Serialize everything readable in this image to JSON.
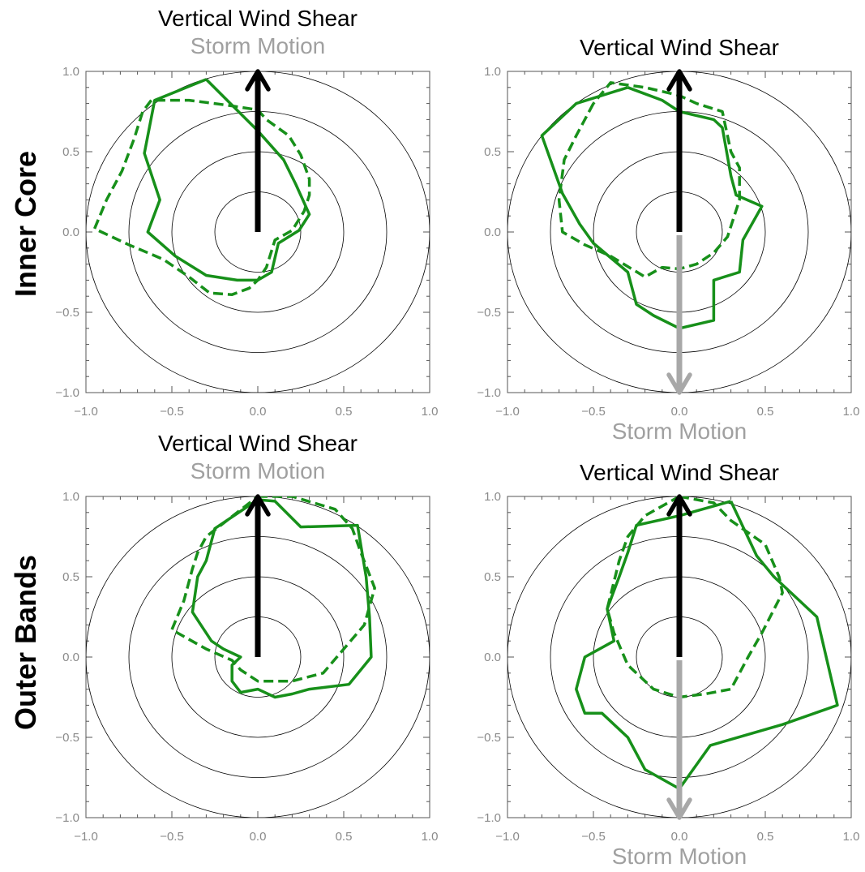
{
  "colors": {
    "shear_arrow": "#000000",
    "motion_arrow": "#a8a8a8",
    "motion_text": "#a0a0a0",
    "series": "#17901a",
    "rings": "#000000",
    "axis_labels": "#8a8a8a"
  },
  "row_labels": [
    "Inner Core",
    "Outer Bands"
  ],
  "chart_data": [
    {
      "type": "line",
      "panel": "top-left",
      "top_titles": [
        "Vertical Wind Shear",
        "Storm Motion"
      ],
      "bottom_title": "",
      "xlim": [
        -1.0,
        1.0
      ],
      "ylim": [
        -1.0,
        1.0
      ],
      "xticks": [
        "−1.0",
        "−0.5",
        "0.0",
        "0.5",
        "1.0"
      ],
      "yticks": [
        "1.0",
        "0.5",
        "0.0",
        "−0.5",
        "−1.0"
      ],
      "rings": [
        0.25,
        0.5,
        0.75,
        1.0
      ],
      "arrows": [
        {
          "name": "Vertical Wind Shear",
          "color": "black",
          "x1": 0,
          "y1": 0,
          "x2": 0,
          "y2": 1.0
        },
        {
          "name": "Storm Motion",
          "color": "gray",
          "x1": 0,
          "y1": 0,
          "x2": 0,
          "y2": 1.0
        }
      ],
      "series": [
        {
          "style": "solid",
          "points": [
            [
              -0.3,
              0.95
            ],
            [
              -0.6,
              0.82
            ],
            [
              -0.66,
              0.49
            ],
            [
              -0.57,
              0.2
            ],
            [
              -0.64,
              0.0
            ],
            [
              -0.48,
              -0.15
            ],
            [
              -0.3,
              -0.27
            ],
            [
              -0.12,
              -0.3
            ],
            [
              0.0,
              -0.3
            ],
            [
              0.08,
              -0.25
            ],
            [
              0.12,
              -0.07
            ],
            [
              0.24,
              0.01
            ],
            [
              0.3,
              0.11
            ],
            [
              0.22,
              0.3
            ],
            [
              0.15,
              0.45
            ],
            [
              0.0,
              0.63
            ],
            [
              -0.3,
              0.95
            ]
          ]
        },
        {
          "style": "dashed",
          "points": [
            [
              -0.62,
              0.82
            ],
            [
              -0.67,
              0.75
            ],
            [
              -0.72,
              0.58
            ],
            [
              -0.79,
              0.38
            ],
            [
              -0.88,
              0.2
            ],
            [
              -0.95,
              0.02
            ],
            [
              -0.75,
              -0.08
            ],
            [
              -0.55,
              -0.17
            ],
            [
              -0.4,
              -0.28
            ],
            [
              -0.28,
              -0.38
            ],
            [
              -0.15,
              -0.39
            ],
            [
              -0.05,
              -0.35
            ],
            [
              0.0,
              -0.3
            ],
            [
              0.05,
              -0.22
            ],
            [
              0.1,
              -0.05
            ],
            [
              0.2,
              0.01
            ],
            [
              0.27,
              0.13
            ],
            [
              0.3,
              0.23
            ],
            [
              0.3,
              0.33
            ],
            [
              0.25,
              0.48
            ],
            [
              0.18,
              0.6
            ],
            [
              0.05,
              0.7
            ],
            [
              0.0,
              0.76
            ],
            [
              -0.18,
              0.79
            ],
            [
              -0.4,
              0.82
            ],
            [
              -0.62,
              0.82
            ]
          ]
        }
      ]
    },
    {
      "type": "line",
      "panel": "top-right",
      "top_titles": [
        "Vertical Wind Shear"
      ],
      "bottom_title": "Storm Motion",
      "xlim": [
        -1.0,
        1.0
      ],
      "ylim": [
        -1.0,
        1.0
      ],
      "xticks": [
        "−1.0",
        "−0.5",
        "0.0",
        "0.5",
        "1.0"
      ],
      "yticks": [
        "1.0",
        "0.5",
        "0.0",
        "−0.5",
        "−1.0"
      ],
      "rings": [
        0.25,
        0.5,
        0.75,
        1.0
      ],
      "arrows": [
        {
          "name": "Vertical Wind Shear",
          "color": "black",
          "x1": 0,
          "y1": 0,
          "x2": 0,
          "y2": 1.0
        },
        {
          "name": "Storm Motion",
          "color": "gray",
          "x1": 0,
          "y1": 0,
          "x2": 0,
          "y2": -1.0
        }
      ],
      "series": [
        {
          "style": "solid",
          "points": [
            [
              -0.3,
              0.9
            ],
            [
              -0.6,
              0.8
            ],
            [
              -0.8,
              0.6
            ],
            [
              -0.68,
              0.24
            ],
            [
              -0.58,
              0.05
            ],
            [
              -0.5,
              -0.07
            ],
            [
              -0.3,
              -0.25
            ],
            [
              -0.25,
              -0.45
            ],
            [
              -0.15,
              -0.52
            ],
            [
              0.0,
              -0.6
            ],
            [
              0.2,
              -0.55
            ],
            [
              0.2,
              -0.3
            ],
            [
              0.35,
              -0.25
            ],
            [
              0.37,
              -0.05
            ],
            [
              0.48,
              0.16
            ],
            [
              0.33,
              0.23
            ],
            [
              0.3,
              0.35
            ],
            [
              0.25,
              0.65
            ],
            [
              0.2,
              0.7
            ],
            [
              0.0,
              0.75
            ],
            [
              -0.1,
              0.82
            ],
            [
              -0.3,
              0.9
            ]
          ]
        },
        {
          "style": "dashed",
          "points": [
            [
              -0.5,
              0.8
            ],
            [
              -0.6,
              0.6
            ],
            [
              -0.67,
              0.45
            ],
            [
              -0.7,
              0.2
            ],
            [
              -0.68,
              0.0
            ],
            [
              -0.55,
              -0.08
            ],
            [
              -0.4,
              -0.15
            ],
            [
              -0.2,
              -0.28
            ],
            [
              -0.1,
              -0.22
            ],
            [
              0.0,
              -0.23
            ],
            [
              0.1,
              -0.2
            ],
            [
              0.2,
              -0.13
            ],
            [
              0.28,
              -0.03
            ],
            [
              0.35,
              0.2
            ],
            [
              0.35,
              0.4
            ],
            [
              0.3,
              0.5
            ],
            [
              0.25,
              0.75
            ],
            [
              0.1,
              0.8
            ],
            [
              0.0,
              0.85
            ],
            [
              -0.2,
              0.9
            ],
            [
              -0.4,
              0.93
            ],
            [
              -0.5,
              0.8
            ]
          ]
        }
      ]
    },
    {
      "type": "line",
      "panel": "bottom-left",
      "top_titles": [
        "Vertical Wind Shear",
        "Storm Motion"
      ],
      "bottom_title": "",
      "xlim": [
        -1.0,
        1.0
      ],
      "ylim": [
        -1.0,
        1.0
      ],
      "xticks": [
        "−1.0",
        "−0.5",
        "0.0",
        "0.5",
        "1.0"
      ],
      "yticks": [
        "1.0",
        "0.5",
        "0.0",
        "−0.5",
        "−1.0"
      ],
      "rings": [
        0.25,
        0.5,
        0.75,
        1.0
      ],
      "arrows": [
        {
          "name": "Vertical Wind Shear",
          "color": "black",
          "x1": 0,
          "y1": 0,
          "x2": 0,
          "y2": 1.0
        },
        {
          "name": "Storm Motion",
          "color": "gray",
          "x1": 0,
          "y1": 0,
          "x2": 0,
          "y2": 1.0
        }
      ],
      "series": [
        {
          "style": "solid",
          "points": [
            [
              0.0,
              0.98
            ],
            [
              0.1,
              0.97
            ],
            [
              0.25,
              0.81
            ],
            [
              0.58,
              0.82
            ],
            [
              0.63,
              0.5
            ],
            [
              0.65,
              0.25
            ],
            [
              0.66,
              0.0
            ],
            [
              0.53,
              -0.17
            ],
            [
              0.3,
              -0.2
            ],
            [
              0.2,
              -0.23
            ],
            [
              0.1,
              -0.25
            ],
            [
              0.0,
              -0.2
            ],
            [
              -0.1,
              -0.22
            ],
            [
              -0.15,
              -0.15
            ],
            [
              -0.15,
              -0.05
            ],
            [
              -0.1,
              0.0
            ],
            [
              -0.2,
              0.05
            ],
            [
              -0.27,
              0.1
            ],
            [
              -0.38,
              0.28
            ],
            [
              -0.35,
              0.5
            ],
            [
              -0.3,
              0.6
            ],
            [
              -0.25,
              0.8
            ],
            [
              0.0,
              0.98
            ]
          ]
        },
        {
          "style": "dashed",
          "points": [
            [
              0.0,
              1.0
            ],
            [
              0.2,
              1.0
            ],
            [
              0.45,
              0.92
            ],
            [
              0.55,
              0.8
            ],
            [
              0.6,
              0.65
            ],
            [
              0.68,
              0.43
            ],
            [
              0.62,
              0.2
            ],
            [
              0.5,
              0.05
            ],
            [
              0.38,
              -0.1
            ],
            [
              0.2,
              -0.15
            ],
            [
              0.0,
              -0.15
            ],
            [
              -0.1,
              -0.08
            ],
            [
              -0.15,
              -0.02
            ],
            [
              -0.3,
              0.05
            ],
            [
              -0.5,
              0.17
            ],
            [
              -0.43,
              0.35
            ],
            [
              -0.38,
              0.55
            ],
            [
              -0.35,
              0.65
            ],
            [
              -0.3,
              0.75
            ],
            [
              0.0,
              1.0
            ]
          ]
        }
      ]
    },
    {
      "type": "line",
      "panel": "bottom-right",
      "top_titles": [
        "Vertical Wind Shear"
      ],
      "bottom_title": "Storm Motion",
      "xlim": [
        -1.0,
        1.0
      ],
      "ylim": [
        -1.0,
        1.0
      ],
      "xticks": [
        "−1.0",
        "−0.5",
        "0.0",
        "0.5",
        "1.0"
      ],
      "yticks": [
        "1.0",
        "0.5",
        "0.0",
        "−0.5",
        "−1.0"
      ],
      "rings": [
        0.25,
        0.5,
        0.75,
        1.0
      ],
      "arrows": [
        {
          "name": "Vertical Wind Shear",
          "color": "black",
          "x1": 0,
          "y1": 0,
          "x2": 0,
          "y2": 1.0
        },
        {
          "name": "Storm Motion",
          "color": "gray",
          "x1": 0,
          "y1": 0,
          "x2": 0,
          "y2": -1.0
        }
      ],
      "series": [
        {
          "style": "solid",
          "points": [
            [
              0.3,
              0.97
            ],
            [
              0.45,
              0.63
            ],
            [
              0.55,
              0.5
            ],
            [
              0.8,
              0.25
            ],
            [
              0.92,
              -0.3
            ],
            [
              0.6,
              -0.42
            ],
            [
              0.18,
              -0.55
            ],
            [
              0.0,
              -0.82
            ],
            [
              -0.2,
              -0.7
            ],
            [
              -0.3,
              -0.5
            ],
            [
              -0.45,
              -0.35
            ],
            [
              -0.55,
              -0.35
            ],
            [
              -0.6,
              -0.2
            ],
            [
              -0.55,
              0.0
            ],
            [
              -0.38,
              0.1
            ],
            [
              -0.42,
              0.3
            ],
            [
              -0.35,
              0.5
            ],
            [
              -0.3,
              0.65
            ],
            [
              -0.25,
              0.82
            ],
            [
              0.0,
              0.88
            ],
            [
              0.3,
              0.97
            ]
          ]
        },
        {
          "style": "dashed",
          "points": [
            [
              0.0,
              1.0
            ],
            [
              0.2,
              0.96
            ],
            [
              0.3,
              0.85
            ],
            [
              0.5,
              0.7
            ],
            [
              0.58,
              0.5
            ],
            [
              0.6,
              0.4
            ],
            [
              0.48,
              0.15
            ],
            [
              0.4,
              0.0
            ],
            [
              0.3,
              -0.2
            ],
            [
              0.15,
              -0.23
            ],
            [
              0.0,
              -0.25
            ],
            [
              -0.15,
              -0.2
            ],
            [
              -0.3,
              -0.05
            ],
            [
              -0.38,
              0.15
            ],
            [
              -0.42,
              0.3
            ],
            [
              -0.35,
              0.6
            ],
            [
              -0.3,
              0.75
            ],
            [
              -0.2,
              0.88
            ],
            [
              0.0,
              1.0
            ]
          ]
        }
      ]
    }
  ]
}
